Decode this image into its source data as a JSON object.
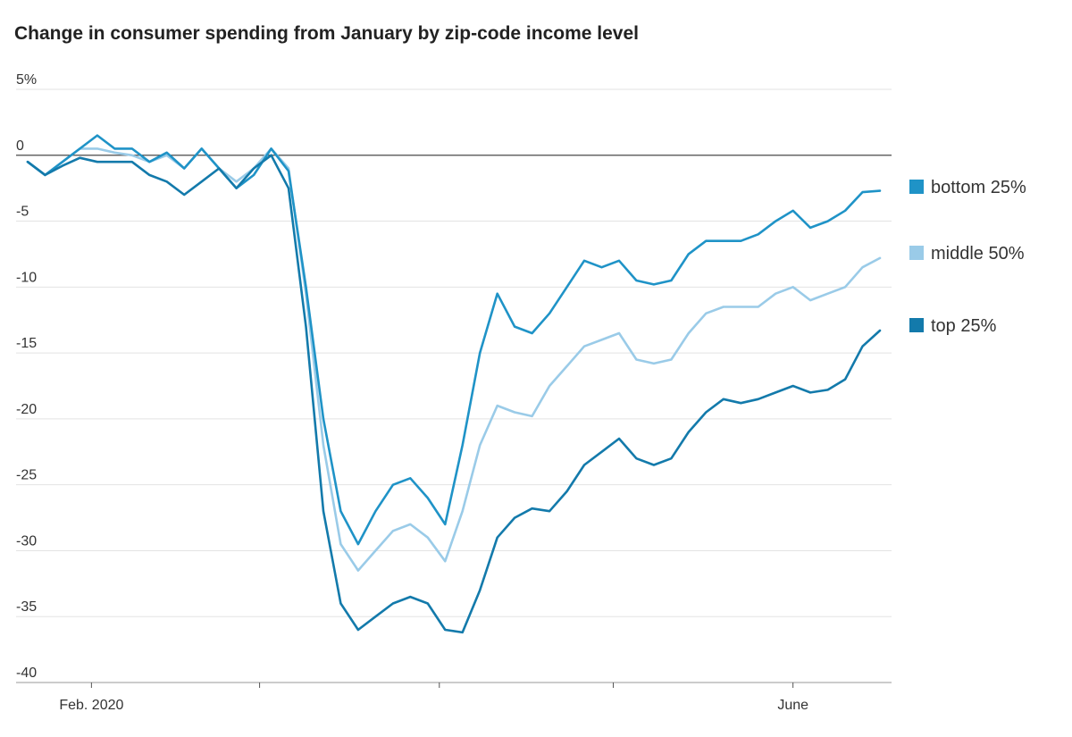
{
  "chart_data": {
    "type": "line",
    "title": "Change in consumer spending from January by zip-code income level",
    "ylim": [
      -40,
      5
    ],
    "yticks": [
      {
        "value": 5,
        "label": "5%"
      },
      {
        "value": 0,
        "label": "0"
      },
      {
        "value": -5,
        "label": "-5"
      },
      {
        "value": -10,
        "label": "-10"
      },
      {
        "value": -15,
        "label": "-15"
      },
      {
        "value": -20,
        "label": "-20"
      },
      {
        "value": -25,
        "label": "-25"
      },
      {
        "value": -30,
        "label": "-30"
      },
      {
        "value": -35,
        "label": "-35"
      },
      {
        "value": -40,
        "label": "-40"
      }
    ],
    "xlim": [
      "2020-01-19",
      "2020-06-18"
    ],
    "xticks": [
      {
        "date": "2020-02-01",
        "label": "Feb. 2020"
      },
      {
        "date": "2020-03-01",
        "label": ""
      },
      {
        "date": "2020-04-01",
        "label": ""
      },
      {
        "date": "2020-05-01",
        "label": ""
      },
      {
        "date": "2020-06-01",
        "label": "June"
      }
    ],
    "grid": true,
    "legend": "right",
    "x": [
      "2020-01-21",
      "2020-01-24",
      "2020-01-27",
      "2020-01-30",
      "2020-02-02",
      "2020-02-05",
      "2020-02-08",
      "2020-02-11",
      "2020-02-14",
      "2020-02-17",
      "2020-02-20",
      "2020-02-23",
      "2020-02-26",
      "2020-02-29",
      "2020-03-03",
      "2020-03-06",
      "2020-03-09",
      "2020-03-12",
      "2020-03-15",
      "2020-03-18",
      "2020-03-21",
      "2020-03-24",
      "2020-03-27",
      "2020-03-30",
      "2020-04-02",
      "2020-04-05",
      "2020-04-08",
      "2020-04-11",
      "2020-04-14",
      "2020-04-17",
      "2020-04-20",
      "2020-04-23",
      "2020-04-26",
      "2020-04-29",
      "2020-05-02",
      "2020-05-05",
      "2020-05-08",
      "2020-05-11",
      "2020-05-14",
      "2020-05-17",
      "2020-05-20",
      "2020-05-23",
      "2020-05-26",
      "2020-05-29",
      "2020-06-01",
      "2020-06-04",
      "2020-06-07",
      "2020-06-10",
      "2020-06-13",
      "2020-06-16"
    ],
    "series": [
      {
        "name": "bottom 25%",
        "color": "#1f93c7",
        "values": [
          -0.5,
          -1.5,
          -0.5,
          0.5,
          1.5,
          0.5,
          0.5,
          -0.5,
          0.2,
          -1.0,
          0.5,
          -1.0,
          -2.5,
          -1.5,
          0.5,
          -1.2,
          -10.0,
          -20.0,
          -27.0,
          -29.5,
          -27.0,
          -25.0,
          -24.5,
          -26.0,
          -28.0,
          -22.0,
          -15.0,
          -10.5,
          -13.0,
          -13.5,
          -12.0,
          -10.0,
          -8.0,
          -8.5,
          -8.0,
          -9.5,
          -9.8,
          -9.5,
          -7.5,
          -6.5,
          -6.5,
          -6.5,
          -6.0,
          -5.0,
          -4.2,
          -5.5,
          -5.0,
          -4.2,
          -2.8,
          -2.7
        ]
      },
      {
        "name": "middle 50%",
        "color": "#9acbe8",
        "values": [
          -0.5,
          -1.5,
          -0.5,
          0.5,
          0.5,
          0.2,
          0.0,
          -0.5,
          0.0,
          -1.0,
          0.5,
          -1.0,
          -2.0,
          -1.0,
          0.5,
          -1.0,
          -10.5,
          -22.0,
          -29.5,
          -31.5,
          -30.0,
          -28.5,
          -28.0,
          -29.0,
          -30.8,
          -27.0,
          -22.0,
          -19.0,
          -19.5,
          -19.8,
          -17.5,
          -16.0,
          -14.5,
          -14.0,
          -13.5,
          -15.5,
          -15.8,
          -15.5,
          -13.5,
          -12.0,
          -11.5,
          -11.5,
          -11.5,
          -10.5,
          -10.0,
          -11.0,
          -10.5,
          -10.0,
          -8.5,
          -7.8
        ]
      },
      {
        "name": "top 25%",
        "color": "#137aab",
        "values": [
          -0.5,
          -1.5,
          -0.8,
          -0.2,
          -0.5,
          -0.5,
          -0.5,
          -1.5,
          -2.0,
          -3.0,
          -2.0,
          -1.0,
          -2.5,
          -1.0,
          0.0,
          -2.5,
          -13.0,
          -27.0,
          -34.0,
          -36.0,
          -35.0,
          -34.0,
          -33.5,
          -34.0,
          -36.0,
          -36.2,
          -33.0,
          -29.0,
          -27.5,
          -26.8,
          -27.0,
          -25.5,
          -23.5,
          -22.5,
          -21.5,
          -23.0,
          -23.5,
          -23.0,
          -21.0,
          -19.5,
          -18.5,
          -18.8,
          -18.5,
          -18.0,
          -17.5,
          -18.0,
          -17.8,
          -17.0,
          -14.5,
          -13.3
        ]
      }
    ]
  }
}
